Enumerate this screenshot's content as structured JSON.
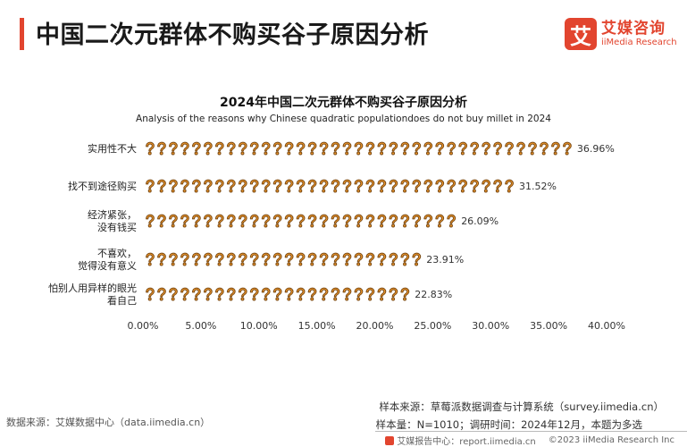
{
  "header": {
    "title": "中国二次元群体不购买谷子原因分析",
    "logo_mark": "艾",
    "logo_cn": "艾媒咨询",
    "logo_en": "iiMedia Research"
  },
  "chart_data": {
    "type": "bar",
    "title": "2024年中国二次元群体不购买谷子原因分析",
    "subtitle": "Analysis of the reasons why Chinese quadratic populationdoes do not buy millet in 2024",
    "categories": [
      [
        "实用性不大"
      ],
      [
        "找不到途径购买"
      ],
      [
        "经济紧张，",
        "没有钱买"
      ],
      [
        "不喜欢，",
        "觉得没有意义"
      ],
      [
        "怕别人用异样的眼光",
        "看自己"
      ]
    ],
    "values": [
      36.96,
      31.52,
      26.09,
      23.91,
      22.83
    ],
    "value_labels": [
      "36.96%",
      "31.52%",
      "26.09%",
      "23.91%",
      "22.83%"
    ],
    "xlim": [
      0,
      40
    ],
    "xticks": [
      0,
      5,
      10,
      15,
      20,
      25,
      30,
      35,
      40
    ],
    "xtick_labels": [
      "0.00%",
      "5.00%",
      "10.00%",
      "15.00%",
      "20.00%",
      "25.00%",
      "30.00%",
      "35.00%",
      "40.00%"
    ],
    "orientation": "horizontal",
    "mark": "pictograph",
    "grid": false,
    "colors": {
      "icon_fill": "#f39a2c",
      "icon_stroke": "#7a4a14"
    }
  },
  "footer": {
    "data_source": "数据来源：艾媒数据中心（data.iimedia.cn）",
    "sample_source": "样本来源：草莓派数据调查与计算系统（survey.iimedia.cn）",
    "sample_size": "样本量：N=1010；调研时间：2024年12月，本题为多选",
    "report_center": "艾媒报告中心：report.iimedia.cn",
    "copyright": "©2023  iiMedia Research  Inc"
  }
}
